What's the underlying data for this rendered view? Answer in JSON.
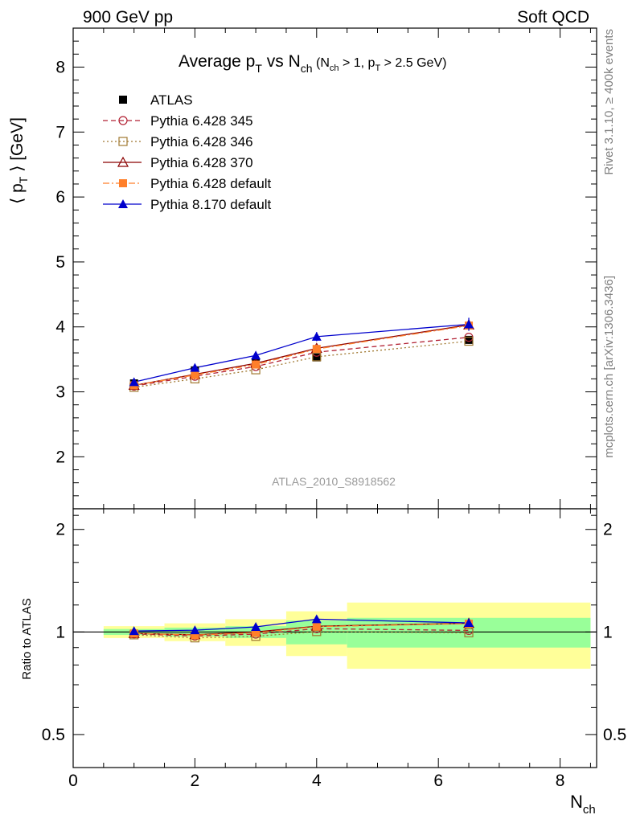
{
  "header": {
    "left": "900 GeV pp",
    "right": "Soft QCD"
  },
  "side_labels": {
    "top": "Rivet 3.1.10, ≥ 400k events",
    "bottom": "mcplots.cern.ch [arXiv:1306.3436]"
  },
  "watermark": "ATLAS_2010_S8918562",
  "chart_data": {
    "type": "line",
    "title": "Average p_T vs N_ch (N_ch > 1, p_T > 2.5 GeV)",
    "title_parts": {
      "main_a": "Average p",
      "sub_a": "T",
      "main_b": " vs N",
      "sub_b": "ch",
      "cond_a": " (N",
      "cond_sub_a": "ch",
      "cond_b": " > 1, p",
      "cond_sub_b": "T",
      "cond_c": " > 2.5 GeV)"
    },
    "ylabel": "⟨ p_T ⟩ [GeV]",
    "ylabel_parts": {
      "a": "⟨ p",
      "sub": "T",
      "b": " ⟩  [GeV]"
    },
    "xlabel": "N_ch",
    "xlabel_parts": {
      "main": "N",
      "sub": "ch"
    },
    "ratio_ylabel": "Ratio to ATLAS",
    "xlim": [
      0,
      8.6
    ],
    "ylim": [
      1.2,
      8.6
    ],
    "ratio_ylim": [
      0.4,
      2.3
    ],
    "ratio_log": true,
    "x_ticks": [
      "0",
      "2",
      "4",
      "6",
      "8"
    ],
    "y_ticks": [
      "2",
      "3",
      "4",
      "5",
      "6",
      "7",
      "8"
    ],
    "ratio_ticks": [
      "0.5",
      "1",
      "2"
    ],
    "x": [
      1,
      2,
      3,
      4,
      6.5
    ],
    "x_bins": [
      [
        0.5,
        1.5
      ],
      [
        1.5,
        2.5
      ],
      [
        2.5,
        3.5
      ],
      [
        3.5,
        4.5
      ],
      [
        4.5,
        8.5
      ]
    ],
    "ratio_band_inner": [
      0.02,
      0.03,
      0.04,
      0.08,
      0.1
    ],
    "ratio_band_outer": [
      0.04,
      0.06,
      0.09,
      0.15,
      0.22
    ],
    "band_inner_color": "#99ff99",
    "band_outer_color": "#ffff99",
    "series": [
      {
        "name": "ATLAS",
        "values": [
          3.13,
          3.33,
          3.44,
          3.53,
          3.8
        ],
        "errors": [
          0.02,
          0.03,
          0.04,
          0.05,
          0.06
        ],
        "color": "#000000",
        "marker": "square-filled",
        "line": "none"
      },
      {
        "name": "Pythia 6.428 345",
        "values": [
          3.09,
          3.24,
          3.39,
          3.61,
          3.84
        ],
        "color": "#b22234",
        "marker": "circle-open",
        "line": "dashed"
      },
      {
        "name": "Pythia 6.428 346",
        "values": [
          3.07,
          3.2,
          3.34,
          3.54,
          3.78
        ],
        "color": "#a07830",
        "marker": "square-open",
        "line": "dotted"
      },
      {
        "name": "Pythia 6.428 370",
        "values": [
          3.1,
          3.27,
          3.44,
          3.67,
          4.03
        ],
        "color": "#8b0000",
        "marker": "triangle-open",
        "line": "solid"
      },
      {
        "name": "Pythia 6.428 default",
        "values": [
          3.1,
          3.26,
          3.42,
          3.66,
          4.02
        ],
        "color": "#ff7f2a",
        "marker": "square-filled",
        "line": "dashdot"
      },
      {
        "name": "Pythia 8.170 default",
        "values": [
          3.15,
          3.37,
          3.56,
          3.85,
          4.04
        ],
        "errors": [
          0.02,
          0.03,
          0.04,
          0.07,
          0.1
        ],
        "color": "#0000cc",
        "marker": "triangle-filled",
        "line": "solid"
      }
    ],
    "legend_position": "top-left",
    "grid": false
  }
}
